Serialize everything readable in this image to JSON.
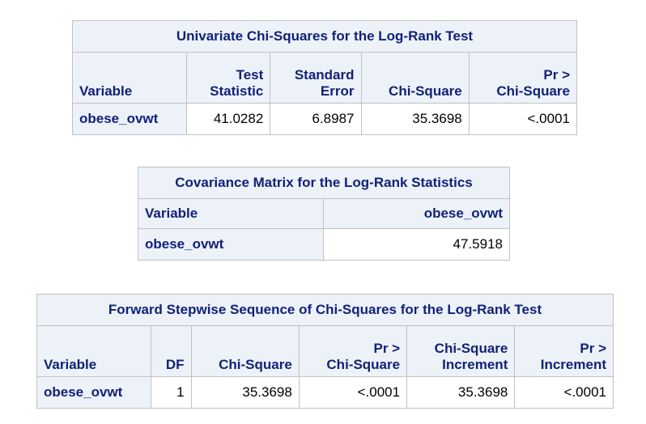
{
  "univariate": {
    "title": "Univariate Chi-Squares for the Log-Rank Test",
    "headers": {
      "variable": "Variable",
      "test_statistic": [
        "Test",
        "Statistic"
      ],
      "standard_error": [
        "Standard",
        "Error"
      ],
      "chi_square": "Chi-Square",
      "pr_chi_square": [
        "Pr >",
        "Chi-Square"
      ]
    },
    "row": {
      "variable": "obese_ovwt",
      "test_statistic": "41.0282",
      "standard_error": "6.8987",
      "chi_square": "35.3698",
      "pr_chi_square": "<.0001"
    }
  },
  "covariance": {
    "title": "Covariance Matrix for the Log-Rank Statistics",
    "headers": {
      "variable": "Variable",
      "obese_ovwt": "obese_ovwt"
    },
    "row": {
      "variable": "obese_ovwt",
      "value": "47.5918"
    }
  },
  "stepwise": {
    "title": "Forward Stepwise Sequence of Chi-Squares for the Log-Rank Test",
    "headers": {
      "variable": "Variable",
      "df": "DF",
      "chi_square": "Chi-Square",
      "pr_chi_square": [
        "Pr >",
        "Chi-Square"
      ],
      "chi_square_increment": [
        "Chi-Square",
        "Increment"
      ],
      "pr_increment": [
        "Pr >",
        "Increment"
      ]
    },
    "row": {
      "variable": "obese_ovwt",
      "df": "1",
      "chi_square": "35.3698",
      "pr_chi_square": "<.0001",
      "chi_square_increment": "35.3698",
      "pr_increment": "<.0001"
    }
  }
}
